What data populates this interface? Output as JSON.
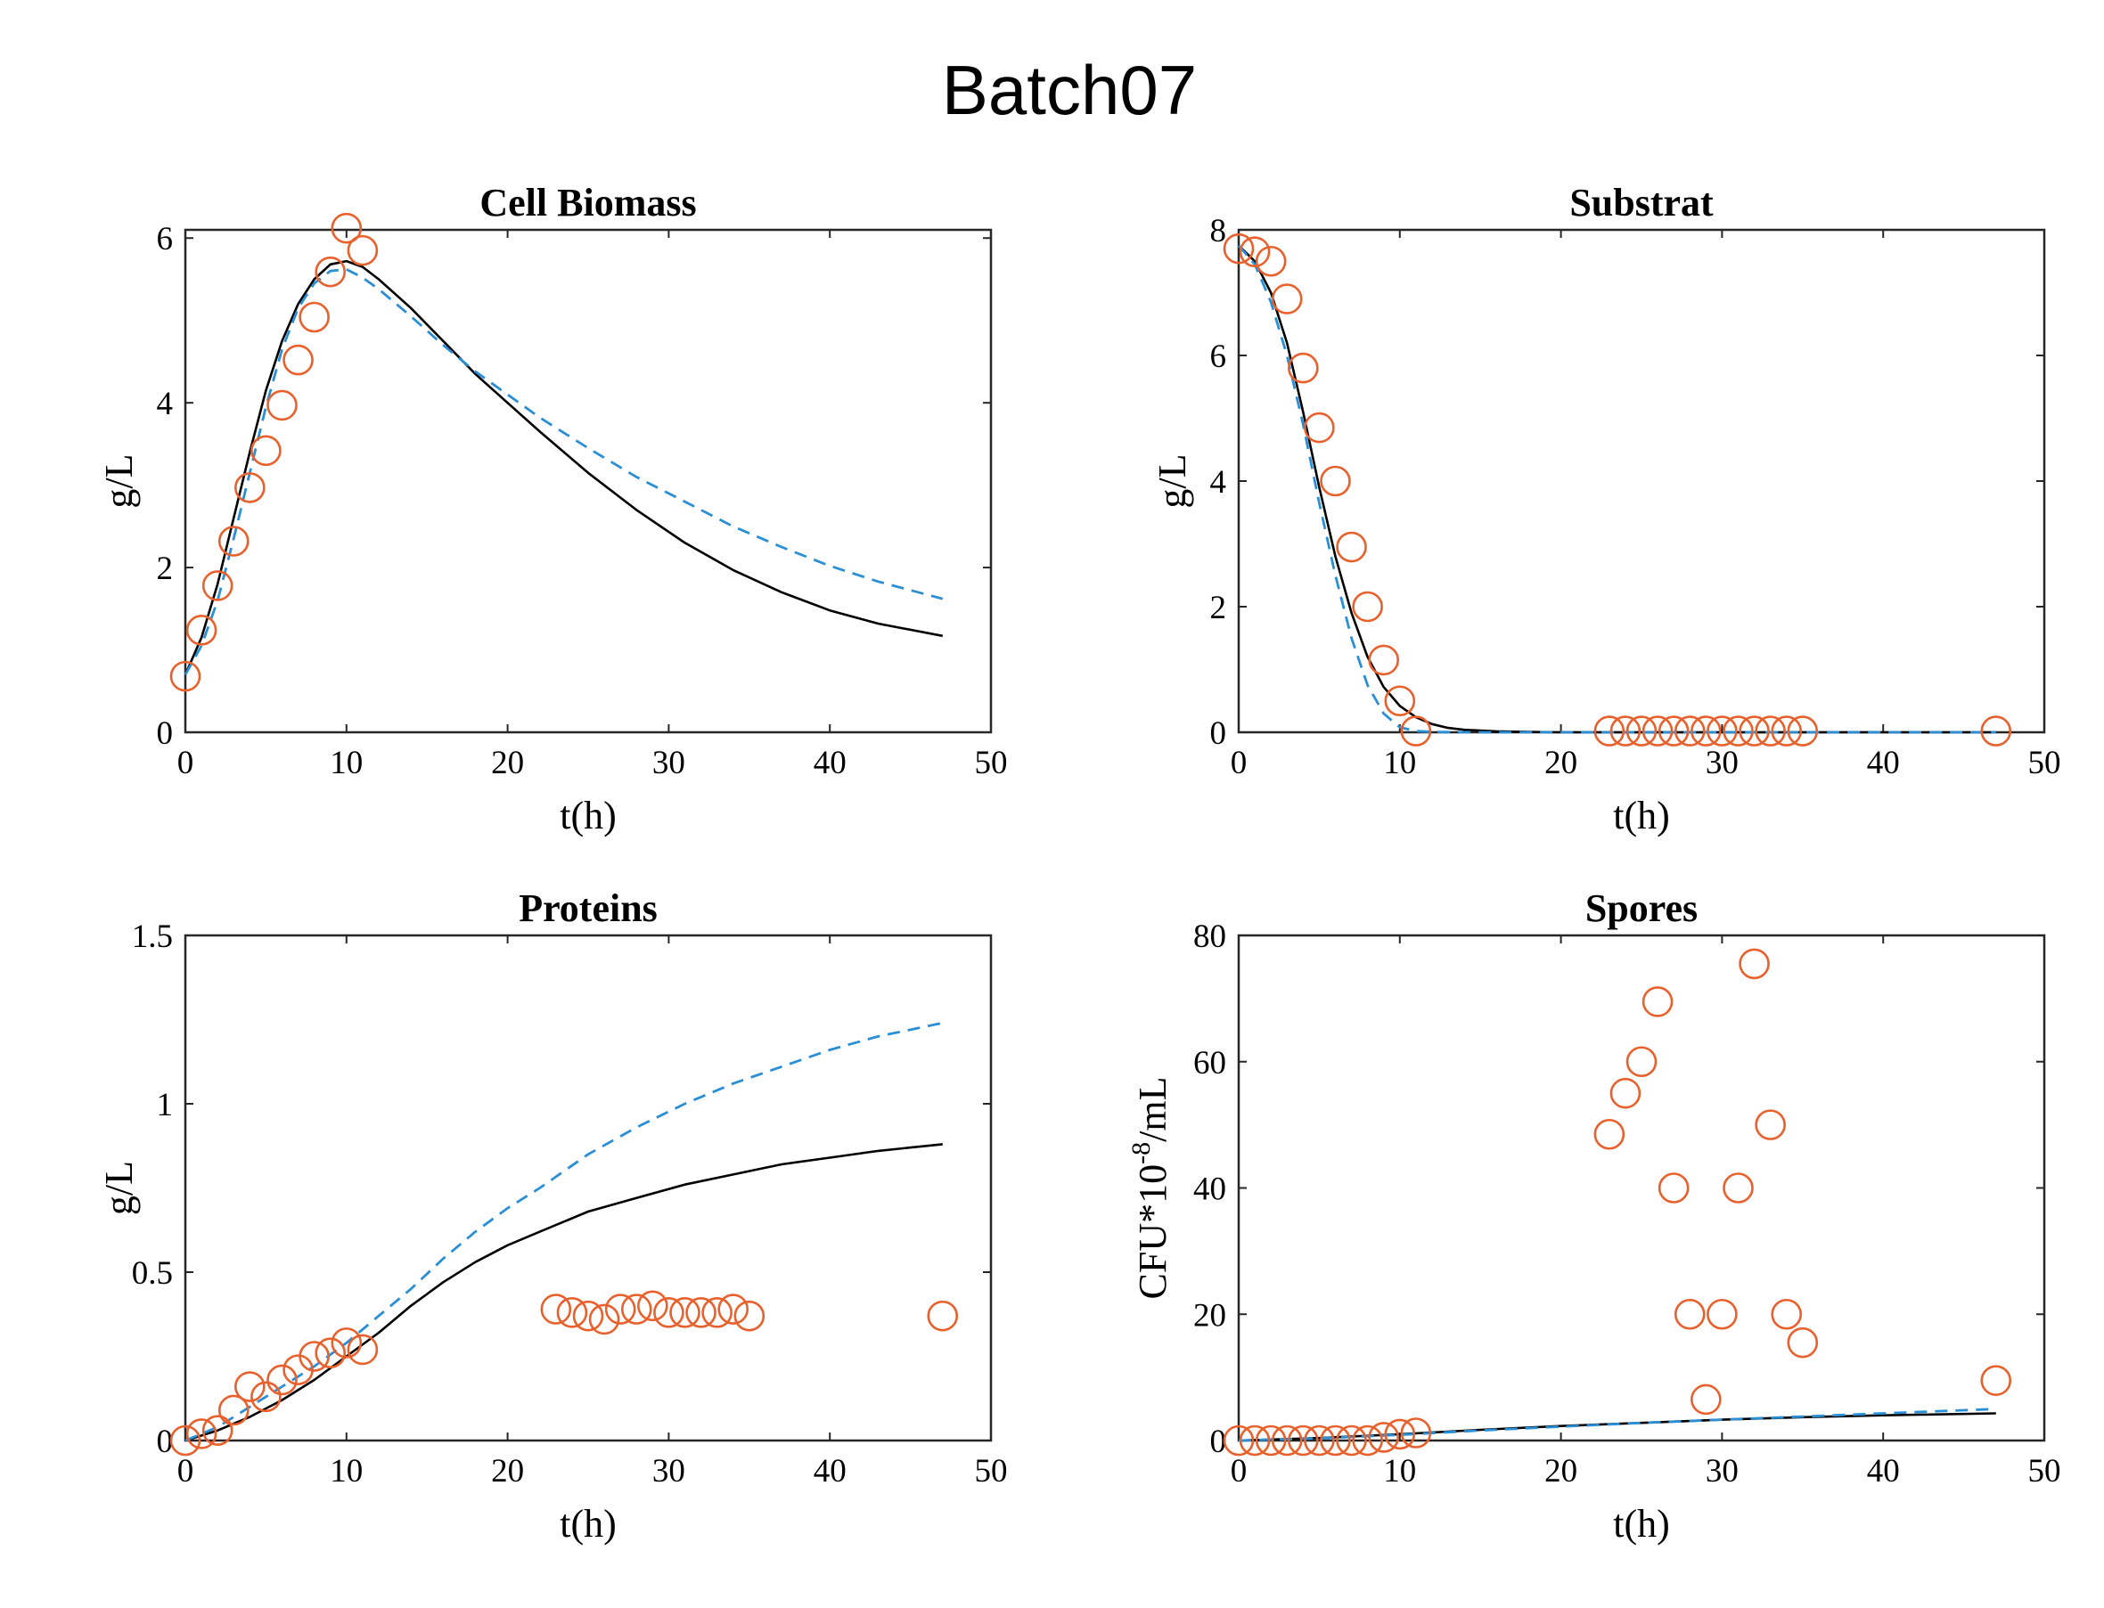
{
  "figure": {
    "title": "Batch07"
  },
  "colors": {
    "model": "#000000",
    "fit": "#2b8fd6",
    "data": "#e8612c",
    "axis": "#262626"
  },
  "chart_data": [
    {
      "type": "line",
      "title": "Cell Biomass",
      "xlabel": "t(h)",
      "ylabel": "g/L",
      "xlim": [
        0,
        50
      ],
      "ylim": [
        0,
        6.1
      ],
      "xticks": [
        0,
        10,
        20,
        30,
        40,
        50
      ],
      "yticks": [
        0,
        2,
        4,
        6
      ],
      "xtick_labels": [
        "0",
        "10",
        "20",
        "30",
        "40",
        "50"
      ],
      "ytick_labels": [
        "0",
        "2",
        "4",
        "6"
      ],
      "series": [
        {
          "name": "model",
          "style": "solid",
          "x": [
            0,
            1,
            2,
            3,
            4,
            5,
            6,
            7,
            8,
            9,
            10,
            11,
            12,
            14,
            16,
            18,
            20,
            22,
            25,
            28,
            31,
            34,
            37,
            40,
            43,
            47
          ],
          "y": [
            0.7,
            1.15,
            1.8,
            2.6,
            3.4,
            4.15,
            4.75,
            5.2,
            5.5,
            5.68,
            5.72,
            5.65,
            5.5,
            5.15,
            4.75,
            4.35,
            4.0,
            3.65,
            3.15,
            2.7,
            2.3,
            1.97,
            1.7,
            1.48,
            1.32,
            1.17
          ]
        },
        {
          "name": "fit",
          "style": "dashed",
          "x": [
            0,
            1,
            2,
            3,
            4,
            5,
            6,
            7,
            8,
            9,
            10,
            11,
            12,
            14,
            16,
            18,
            20,
            22,
            25,
            28,
            31,
            34,
            37,
            40,
            43,
            47
          ],
          "y": [
            0.7,
            1.05,
            1.6,
            2.35,
            3.15,
            3.95,
            4.65,
            5.15,
            5.45,
            5.6,
            5.62,
            5.52,
            5.38,
            5.05,
            4.7,
            4.38,
            4.1,
            3.82,
            3.45,
            3.1,
            2.8,
            2.5,
            2.25,
            2.02,
            1.83,
            1.62
          ]
        },
        {
          "name": "data",
          "style": "marker",
          "x": [
            0,
            1,
            2,
            3,
            4,
            5,
            6,
            7,
            8,
            9,
            10,
            11
          ],
          "y": [
            0.68,
            1.24,
            1.78,
            2.32,
            2.97,
            3.42,
            3.97,
            4.52,
            5.04,
            5.59,
            6.12,
            5.85
          ]
        }
      ]
    },
    {
      "type": "line",
      "title": "Substrat",
      "xlabel": "t(h)",
      "ylabel": "g/L",
      "xlim": [
        0,
        50
      ],
      "ylim": [
        0,
        8
      ],
      "xticks": [
        0,
        10,
        20,
        30,
        40,
        50
      ],
      "yticks": [
        0,
        2,
        4,
        6,
        8
      ],
      "xtick_labels": [
        "0",
        "10",
        "20",
        "30",
        "40",
        "50"
      ],
      "ytick_labels": [
        "0",
        "2",
        "4",
        "6",
        "8"
      ],
      "series": [
        {
          "name": "model",
          "style": "solid",
          "x": [
            0,
            1,
            2,
            3,
            4,
            5,
            6,
            7,
            8,
            9,
            10,
            11,
            12,
            13,
            14,
            16,
            18,
            20,
            25,
            30,
            35,
            40,
            47
          ],
          "y": [
            7.75,
            7.5,
            7.0,
            6.2,
            5.1,
            3.9,
            2.8,
            1.9,
            1.2,
            0.72,
            0.42,
            0.24,
            0.13,
            0.07,
            0.04,
            0.015,
            0.005,
            0.0,
            0.0,
            0.0,
            0.0,
            0.0,
            0.0
          ]
        },
        {
          "name": "fit",
          "style": "dashed",
          "x": [
            0,
            1,
            2,
            3,
            4,
            5,
            6,
            7,
            8,
            9,
            10,
            11,
            12,
            14,
            16,
            20,
            30,
            40,
            47
          ],
          "y": [
            7.75,
            7.45,
            6.85,
            6.0,
            4.9,
            3.65,
            2.5,
            1.5,
            0.75,
            0.3,
            0.08,
            0.02,
            0.005,
            0.0,
            0.0,
            0.0,
            0.0,
            0.0,
            0.0
          ]
        },
        {
          "name": "data",
          "style": "marker",
          "x": [
            0,
            1,
            2,
            3,
            4,
            5,
            6,
            7,
            8,
            9,
            10,
            11,
            23,
            24,
            25,
            26,
            27,
            28,
            29,
            30,
            31,
            32,
            33,
            34,
            35,
            47
          ],
          "y": [
            7.7,
            7.65,
            7.5,
            6.9,
            5.8,
            4.85,
            4.0,
            2.95,
            2.0,
            1.15,
            0.5,
            0.02,
            0.02,
            0.02,
            0.02,
            0.02,
            0.02,
            0.02,
            0.02,
            0.02,
            0.02,
            0.02,
            0.02,
            0.02,
            0.02,
            0.02
          ]
        }
      ]
    },
    {
      "type": "line",
      "title": "Proteins",
      "xlabel": "t(h)",
      "ylabel": "g/L",
      "xlim": [
        0,
        50
      ],
      "ylim": [
        0,
        1.5
      ],
      "xticks": [
        0,
        10,
        20,
        30,
        40,
        50
      ],
      "yticks": [
        0,
        0.5,
        1,
        1.5
      ],
      "xtick_labels": [
        "0",
        "10",
        "20",
        "30",
        "40",
        "50"
      ],
      "ytick_labels": [
        "0",
        "0.5",
        "1",
        "1.5"
      ],
      "series": [
        {
          "name": "model",
          "style": "solid",
          "x": [
            0,
            2,
            4,
            6,
            8,
            10,
            12,
            14,
            16,
            18,
            20,
            22,
            25,
            28,
            31,
            34,
            37,
            40,
            43,
            47
          ],
          "y": [
            0.0,
            0.03,
            0.07,
            0.12,
            0.18,
            0.25,
            0.32,
            0.4,
            0.47,
            0.53,
            0.58,
            0.62,
            0.68,
            0.72,
            0.76,
            0.79,
            0.82,
            0.84,
            0.86,
            0.88
          ]
        },
        {
          "name": "fit",
          "style": "dashed",
          "x": [
            0,
            2,
            4,
            6,
            8,
            10,
            12,
            14,
            16,
            18,
            20,
            22,
            25,
            28,
            31,
            34,
            37,
            40,
            43,
            47
          ],
          "y": [
            0.0,
            0.04,
            0.1,
            0.16,
            0.22,
            0.29,
            0.37,
            0.45,
            0.54,
            0.62,
            0.69,
            0.75,
            0.85,
            0.93,
            1.0,
            1.06,
            1.11,
            1.16,
            1.2,
            1.24
          ]
        },
        {
          "name": "data",
          "style": "marker",
          "x": [
            0,
            1,
            2,
            3,
            4,
            5,
            6,
            7,
            8,
            9,
            10,
            11,
            23,
            24,
            25,
            26,
            27,
            28,
            29,
            30,
            31,
            32,
            33,
            34,
            35,
            47
          ],
          "y": [
            0.0,
            0.02,
            0.03,
            0.09,
            0.16,
            0.13,
            0.18,
            0.21,
            0.25,
            0.26,
            0.29,
            0.27,
            0.39,
            0.38,
            0.37,
            0.36,
            0.39,
            0.39,
            0.4,
            0.38,
            0.38,
            0.38,
            0.38,
            0.39,
            0.37,
            0.37
          ]
        }
      ]
    },
    {
      "type": "line",
      "title": "Spores",
      "xlabel": "t(h)",
      "ylabel": "CFU*10",
      "ylabel_sup": "-8",
      "ylabel_tail": "/mL",
      "xlim": [
        0,
        50
      ],
      "ylim": [
        0,
        80
      ],
      "xticks": [
        0,
        10,
        20,
        30,
        40,
        50
      ],
      "yticks": [
        0,
        20,
        40,
        60,
        80
      ],
      "xtick_labels": [
        "0",
        "10",
        "20",
        "30",
        "40",
        "50"
      ],
      "ytick_labels": [
        "0",
        "20",
        "40",
        "60",
        "80"
      ],
      "series": [
        {
          "name": "model",
          "style": "solid",
          "x": [
            0,
            5,
            10,
            15,
            20,
            25,
            30,
            35,
            40,
            47
          ],
          "y": [
            0.0,
            0.4,
            1.0,
            1.7,
            2.3,
            2.8,
            3.3,
            3.7,
            4.0,
            4.3
          ]
        },
        {
          "name": "fit",
          "style": "dashed",
          "x": [
            0,
            5,
            10,
            15,
            20,
            25,
            30,
            35,
            40,
            47
          ],
          "y": [
            0.0,
            0.35,
            0.9,
            1.6,
            2.2,
            2.8,
            3.3,
            3.8,
            4.3,
            5.0
          ]
        },
        {
          "name": "data",
          "style": "marker",
          "x": [
            0,
            1,
            2,
            3,
            4,
            5,
            6,
            7,
            8,
            9,
            10,
            11,
            23,
            24,
            25,
            26,
            27,
            28,
            29,
            30,
            31,
            32,
            33,
            34,
            35,
            47
          ],
          "y": [
            0.0,
            0.0,
            0.0,
            0.0,
            0.0,
            0.0,
            0.0,
            0.0,
            0.0,
            0.5,
            1.0,
            1.2,
            48.5,
            55.0,
            60.0,
            69.5,
            40.0,
            20.0,
            6.5,
            20.0,
            40.0,
            75.5,
            50.0,
            20.0,
            15.5,
            9.5
          ]
        }
      ]
    }
  ]
}
